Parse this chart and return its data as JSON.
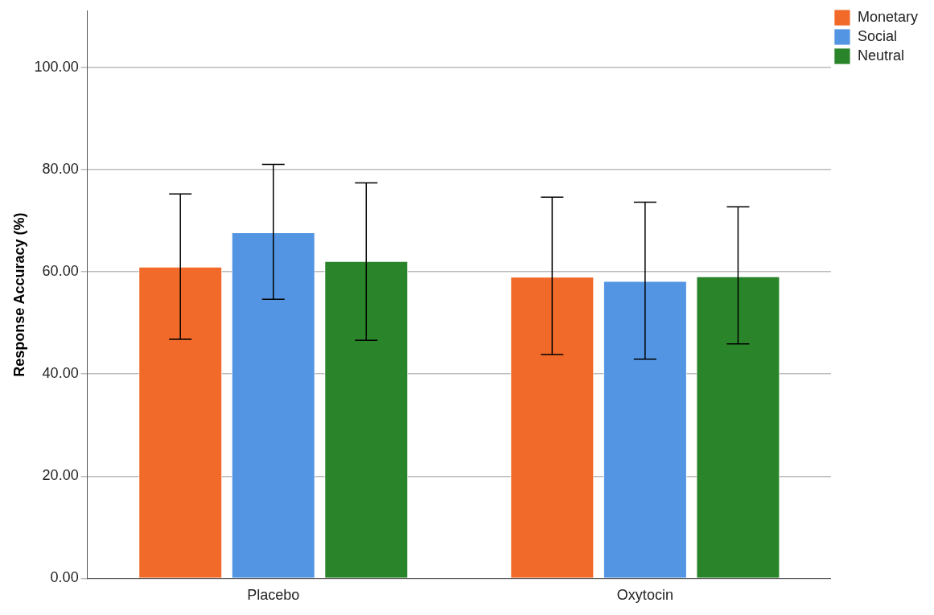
{
  "chart_data": {
    "type": "bar",
    "ylabel": "Response Accuracy (%)",
    "categories": [
      "Placebo",
      "Oxytocin"
    ],
    "series": [
      {
        "name": "Monetary",
        "color": "#f26a2a",
        "values": [
          61.0,
          59.0
        ],
        "errors": [
          [
            46.8,
            75.2
          ],
          [
            43.8,
            74.6
          ]
        ]
      },
      {
        "name": "Social",
        "color": "#5495e3",
        "values": [
          67.7,
          58.2
        ],
        "errors": [
          [
            54.6,
            81.0
          ],
          [
            42.9,
            73.6
          ]
        ]
      },
      {
        "name": "Neutral",
        "color": "#2a8429",
        "values": [
          62.1,
          59.1
        ],
        "errors": [
          [
            46.6,
            77.4
          ],
          [
            45.9,
            72.7
          ]
        ]
      }
    ],
    "ylim": [
      0,
      111
    ],
    "yticks": [
      {
        "value": 0,
        "label": "0.00"
      },
      {
        "value": 20,
        "label": "20.00"
      },
      {
        "value": 40,
        "label": "40.00"
      },
      {
        "value": 60,
        "label": "60.00"
      },
      {
        "value": 80,
        "label": "80.00"
      },
      {
        "value": 100,
        "label": "100.00"
      }
    ],
    "grid": "y",
    "legend": "top right"
  }
}
